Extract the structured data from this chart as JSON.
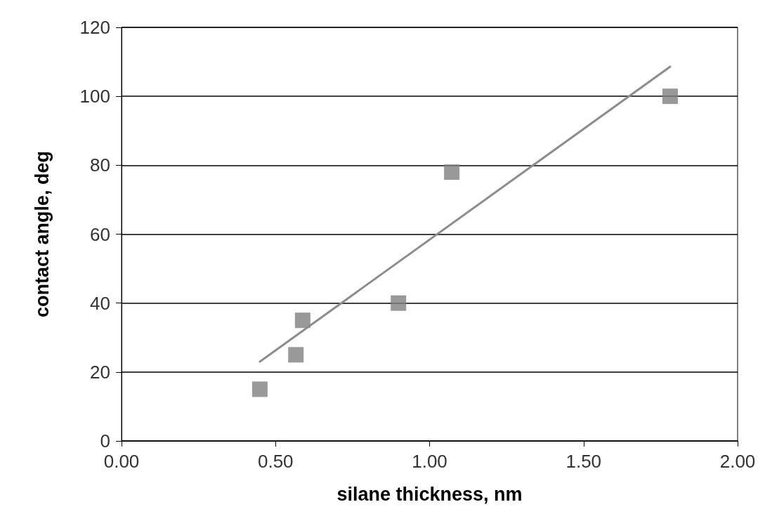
{
  "chart_data": {
    "type": "scatter",
    "xlabel": "silane thickness, nm",
    "ylabel": "contact angle, deg",
    "series": [
      {
        "type": "scatter",
        "color": "#808080",
        "marker": "square",
        "x": [
          0.449,
          0.566,
          0.588,
          0.899,
          1.072,
          1.781
        ],
        "values": [
          15,
          25,
          35,
          40,
          78,
          100
        ]
      },
      {
        "type": "line",
        "color": "#8c8c8c",
        "marker": "none",
        "line_style": "solid",
        "x": [
          0.449,
          1.781
        ],
        "values": [
          23,
          108.6
        ]
      }
    ],
    "xlim": [
      0,
      2
    ],
    "xticks": [
      {
        "value": 0,
        "label": "0.00"
      },
      {
        "value": 0.5,
        "label": "0.50"
      },
      {
        "value": 1,
        "label": "1.00"
      },
      {
        "value": 1.5,
        "label": "1.50"
      },
      {
        "value": 2,
        "label": "2.00"
      }
    ],
    "ylim": [
      0,
      120
    ],
    "yticks": [
      0,
      20,
      40,
      60,
      80,
      100,
      120
    ],
    "grid": "y"
  }
}
